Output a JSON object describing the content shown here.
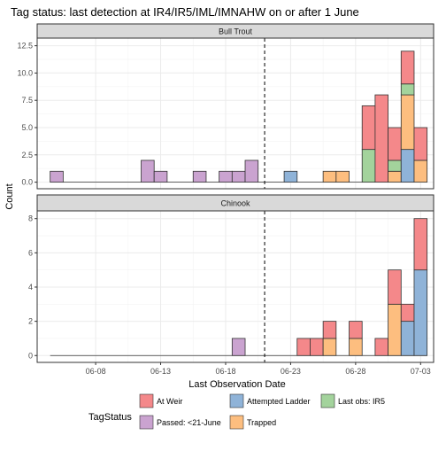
{
  "chart_data": {
    "type": "bar",
    "stacked": true,
    "title": "Tag status: last detection at IR4/IR5/IML/IMNAHW on or after 1 June",
    "xlabel": "Last Observation Date",
    "ylabel": "Count",
    "x_ticks": [
      "06-08",
      "06-13",
      "06-18",
      "06-23",
      "06-28",
      "07-03"
    ],
    "x_tick_days": [
      8,
      13,
      18,
      23,
      28,
      33
    ],
    "x_range": [
      3.5,
      34
    ],
    "vline_day": 21,
    "series_order": [
      "Passed: <21-June",
      "Attempted Ladder",
      "Trapped",
      "Last obs: IR5",
      "At Weir"
    ],
    "colors": {
      "At Weir": "#f4888a",
      "Attempted Ladder": "#8fb3d8",
      "Last obs: IR5": "#a3d39c",
      "Passed: <21-June": "#caa3d0",
      "Trapped": "#fdbe7f"
    },
    "panels": [
      {
        "strip": "Bull Trout",
        "y_ticks": [
          "0.0",
          "2.5",
          "5.0",
          "7.5",
          "10.0",
          "12.5"
        ],
        "y_tick_values": [
          0,
          2.5,
          5,
          7.5,
          10,
          12.5
        ],
        "ylim": [
          -0.6,
          13.2
        ],
        "bars": [
          {
            "day": 5,
            "Passed: <21-June": 1
          },
          {
            "day": 12,
            "Passed: <21-June": 2
          },
          {
            "day": 13,
            "Passed: <21-June": 1
          },
          {
            "day": 16,
            "Passed: <21-June": 1
          },
          {
            "day": 18,
            "Passed: <21-June": 1
          },
          {
            "day": 19,
            "Passed: <21-June": 1
          },
          {
            "day": 20,
            "Passed: <21-June": 2
          },
          {
            "day": 23,
            "Attempted Ladder": 1
          },
          {
            "day": 26,
            "Trapped": 1
          },
          {
            "day": 27,
            "Trapped": 1
          },
          {
            "day": 29,
            "Last obs: IR5": 3,
            "At Weir": 4
          },
          {
            "day": 30,
            "At Weir": 8
          },
          {
            "day": 31,
            "Trapped": 1,
            "Last obs: IR5": 1,
            "At Weir": 3
          },
          {
            "day": 32,
            "Trapped": 5,
            "Last obs: IR5": 1,
            "Attempted Ladder": 3,
            "At Weir": 3
          },
          {
            "day": 33,
            "Trapped": 2,
            "At Weir": 3
          }
        ]
      },
      {
        "strip": "Chinook",
        "y_ticks": [
          "0",
          "2",
          "4",
          "6",
          "8"
        ],
        "y_tick_values": [
          0,
          2,
          4,
          6,
          8
        ],
        "ylim": [
          -0.4,
          8.45
        ],
        "bars": [
          {
            "day": 19,
            "Passed: <21-June": 1
          },
          {
            "day": 24,
            "At Weir": 1
          },
          {
            "day": 25,
            "At Weir": 1
          },
          {
            "day": 26,
            "Trapped": 1,
            "At Weir": 1
          },
          {
            "day": 28,
            "Trapped": 1,
            "At Weir": 1
          },
          {
            "day": 30,
            "At Weir": 1
          },
          {
            "day": 31,
            "Trapped": 3,
            "At Weir": 2
          },
          {
            "day": 32,
            "Attempted Ladder": 2,
            "At Weir": 1
          },
          {
            "day": 33,
            "Attempted Ladder": 5,
            "At Weir": 3
          }
        ]
      }
    ],
    "legend": {
      "title": "TagStatus",
      "position": "bottom",
      "rows": [
        [
          "At Weir",
          "Attempted Ladder",
          "Last obs: IR5"
        ],
        [
          "Passed: <21-June",
          "Trapped"
        ]
      ]
    }
  }
}
